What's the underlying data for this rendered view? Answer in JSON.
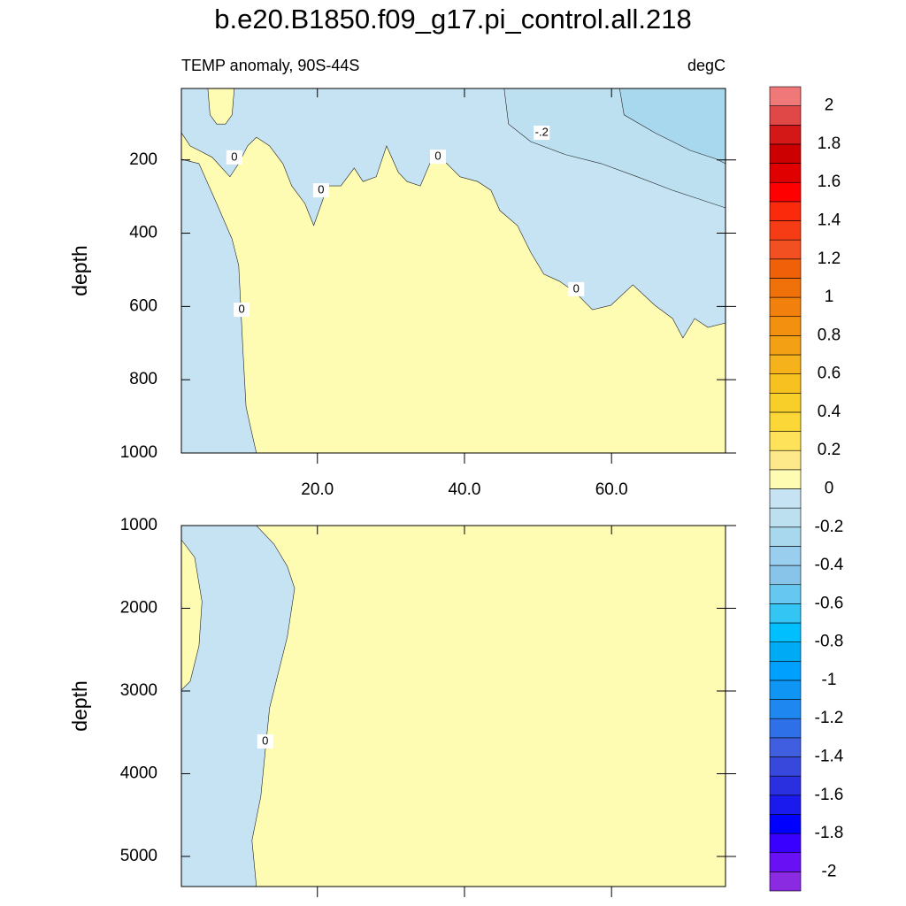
{
  "chart_data": [
    {
      "type": "contour",
      "title": "b.e20.B1850.f09_g17.pi_control.all.218",
      "subtitle": "TEMP anomaly, 90S-44S",
      "units": "degC",
      "y_label": "depth",
      "xlim": [
        1.5,
        75.5
      ],
      "ylim": [
        5,
        1000
      ],
      "xticks": [
        {
          "value": 20,
          "label": "20.0"
        },
        {
          "value": 40,
          "label": "40.0"
        },
        {
          "value": 60,
          "label": "60.0"
        }
      ],
      "yticks": [
        200,
        400,
        600,
        800,
        1000
      ],
      "levels": [
        -2,
        -1.9,
        -1.8,
        -1.7,
        -1.6,
        -1.5,
        -1.4,
        -1.3,
        -1.2,
        -1.1,
        -1,
        -0.9,
        -0.8,
        -0.7,
        -0.6,
        -0.5,
        -0.4,
        -0.3,
        -0.2,
        -0.1,
        0,
        0.1,
        0.2,
        0.3,
        0.4,
        0.5,
        0.6,
        0.7,
        0.8,
        0.9,
        1,
        1.1,
        1.2,
        1.3,
        1.4,
        1.5,
        1.6,
        1.7,
        1.8,
        1.9,
        2
      ],
      "colors": [
        "#8a2be2",
        "#6a10f5",
        "#3a00ff",
        "#0000ff",
        "#1a1aee",
        "#2a30e0",
        "#3848dd",
        "#3f5fe0",
        "#2e70e8",
        "#1e88f0",
        "#0f96f5",
        "#00a0ff",
        "#00aaf5",
        "#00bfff",
        "#33c6f5",
        "#66c8f0",
        "#88c4ea",
        "#99ceee",
        "#a8d8ee",
        "#bce0f0",
        "#c6e3f3",
        "#fefbb3",
        "#fde88a",
        "#fde25a",
        "#fbd838",
        "#f8cf28",
        "#f7c21f",
        "#f5b21a",
        "#f4a014",
        "#f49010",
        "#f2800d",
        "#f0700a",
        "#f06008",
        "#f25020",
        "#f53c14",
        "#fa2a0a",
        "#ff0000",
        "#e00000",
        "#cc0000",
        "#d41818",
        "#e04848",
        "#f07878"
      ],
      "colorbar_ticks": [
        -2,
        -1.8,
        -1.6,
        -1.4,
        -1.2,
        -1,
        -0.8,
        -0.6,
        -0.4,
        -0.2,
        0,
        0.2,
        0.4,
        0.6,
        0.8,
        1,
        1.2,
        1.4,
        1.6,
        1.8,
        2
      ],
      "fill_level": 0,
      "regions": [
        {
          "level": -0.1,
          "points": [
            [
              1.5,
              5
            ],
            [
              75.5,
              5
            ],
            [
              75.5,
              645
            ],
            [
              73.1,
              657
            ],
            [
              71.3,
              633
            ],
            [
              69.7,
              686
            ],
            [
              68.3,
              633
            ],
            [
              65.9,
              597
            ],
            [
              62.9,
              541
            ],
            [
              59.9,
              597
            ],
            [
              57.4,
              609
            ],
            [
              55.0,
              560
            ],
            [
              52.9,
              531
            ],
            [
              50.8,
              512
            ],
            [
              49.0,
              452
            ],
            [
              47.2,
              379
            ],
            [
              44.8,
              338
            ],
            [
              43.6,
              283
            ],
            [
              41.8,
              259
            ],
            [
              39.4,
              246
            ],
            [
              37.6,
              210
            ],
            [
              35.8,
              186
            ],
            [
              34.0,
              271
            ],
            [
              32.2,
              259
            ],
            [
              31.0,
              234
            ],
            [
              29.4,
              162
            ],
            [
              28.0,
              246
            ],
            [
              26.2,
              259
            ],
            [
              25.0,
              222
            ],
            [
              23.2,
              271
            ],
            [
              21.4,
              271
            ],
            [
              19.5,
              379
            ],
            [
              18.3,
              319
            ],
            [
              16.5,
              271
            ],
            [
              15.3,
              210
            ],
            [
              13.5,
              162
            ],
            [
              11.7,
              138
            ],
            [
              10.5,
              162
            ],
            [
              9.3,
              210
            ],
            [
              8.1,
              246
            ],
            [
              5.7,
              193
            ],
            [
              3.9,
              174
            ],
            [
              2.7,
              162
            ],
            [
              1.5,
              126
            ]
          ]
        },
        {
          "level": -0.1,
          "points": [
            [
              1.5,
              198
            ],
            [
              3.9,
              210
            ],
            [
              6.3,
              319
            ],
            [
              8.4,
              416
            ],
            [
              9.3,
              488
            ],
            [
              9.9,
              730
            ],
            [
              10.3,
              874
            ],
            [
              11.1,
              947
            ],
            [
              11.7,
              1000
            ],
            [
              1.5,
              1000
            ]
          ]
        },
        {
          "level": 0,
          "points": [
            [
              5.1,
              5
            ],
            [
              8.7,
              5
            ],
            [
              8.4,
              77
            ],
            [
              7.5,
              102
            ],
            [
              6.3,
              102
            ],
            [
              5.4,
              77
            ]
          ]
        },
        {
          "level": -0.2,
          "points": [
            [
              45.4,
              5
            ],
            [
              46.0,
              102
            ],
            [
              49.0,
              150
            ],
            [
              53.8,
              186
            ],
            [
              58.6,
              210
            ],
            [
              63.5,
              246
            ],
            [
              68.3,
              283
            ],
            [
              71.9,
              307
            ],
            [
              75.5,
              331
            ],
            [
              75.5,
              5
            ]
          ]
        },
        {
          "level": -0.3,
          "points": [
            [
              61.1,
              5
            ],
            [
              61.7,
              77
            ],
            [
              65.9,
              126
            ],
            [
              70.7,
              174
            ],
            [
              74.3,
              198
            ],
            [
              75.5,
              210
            ],
            [
              75.5,
              5
            ]
          ]
        }
      ],
      "annotations": [
        {
          "text": "0",
          "x": 8.7,
          "depth": 193
        },
        {
          "text": "0",
          "x": 20.5,
          "depth": 283
        },
        {
          "text": "0",
          "x": 36.4,
          "depth": 191
        },
        {
          "text": "0",
          "x": 55.2,
          "depth": 553
        },
        {
          "text": "0",
          "x": 9.7,
          "depth": 609
        },
        {
          "text": "-.2",
          "x": 50.5,
          "depth": 126
        }
      ]
    },
    {
      "type": "contour",
      "y_label": "depth",
      "xlim": [
        1.5,
        75.5
      ],
      "ylim": [
        1000,
        5364
      ],
      "xticks": [
        20,
        40,
        60
      ],
      "yticks": [
        1000,
        2000,
        3000,
        4000,
        5000
      ],
      "fill_level": 0,
      "regions": [
        {
          "level": -0.1,
          "points": [
            [
              1.5,
              1000
            ],
            [
              11.7,
              1000
            ],
            [
              14.1,
              1225
            ],
            [
              15.9,
              1492
            ],
            [
              16.9,
              1759
            ],
            [
              15.9,
              2348
            ],
            [
              14.7,
              2775
            ],
            [
              13.5,
              3203
            ],
            [
              12.9,
              3738
            ],
            [
              12.3,
              4273
            ],
            [
              11.1,
              4807
            ],
            [
              11.7,
              5364
            ],
            [
              1.5,
              5364
            ]
          ]
        },
        {
          "level": 0,
          "points": [
            [
              1.5,
              1171
            ],
            [
              3.3,
              1385
            ],
            [
              4.3,
              1920
            ],
            [
              3.9,
              2455
            ],
            [
              2.7,
              2882
            ],
            [
              1.5,
              2989
            ]
          ]
        }
      ],
      "annotations": [
        {
          "text": "0",
          "x": 12.9,
          "depth": 3610
        }
      ]
    }
  ]
}
